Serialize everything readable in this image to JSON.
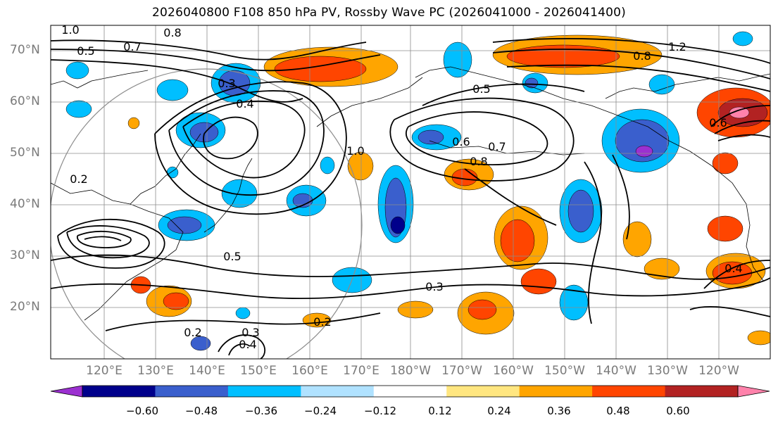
{
  "title": "2026040800 F108 850 hPa PV, Rossby Wave PC (2026041000 - 2026041400)",
  "lat_labels": [
    "70°N",
    "60°N",
    "50°N",
    "40°N",
    "30°N",
    "20°N"
  ],
  "lon_labels": [
    "120°E",
    "130°E",
    "140°E",
    "150°E",
    "160°E",
    "170°E",
    "180°W",
    "170°W",
    "160°W",
    "150°W",
    "140°W",
    "130°W",
    "120°W"
  ],
  "colorbar": {
    "ticks": [
      "−0.60",
      "−0.48",
      "−0.36",
      "−0.24",
      "−0.12",
      "0.12",
      "0.24",
      "0.36",
      "0.48",
      "0.60"
    ],
    "colors": [
      "#9b30d0",
      "#00008b",
      "#3a5fcd",
      "#00bfff",
      "#b0e2ff",
      "#ffffff",
      "#ffe680",
      "#ffa500",
      "#ff4500",
      "#b22222",
      "#ff82ab"
    ]
  },
  "contour_labels": [
    "1.0",
    "0.8",
    "0.7",
    "0.5",
    "0.2",
    "0.3",
    "0.4",
    "1.2",
    "0.6",
    "0.8",
    "0.3",
    "0.2",
    "0.4",
    "0.5",
    "1.0",
    "0.8",
    "0.6",
    "0.7",
    "0.3",
    "0.2",
    "0.4",
    "0.5"
  ]
}
